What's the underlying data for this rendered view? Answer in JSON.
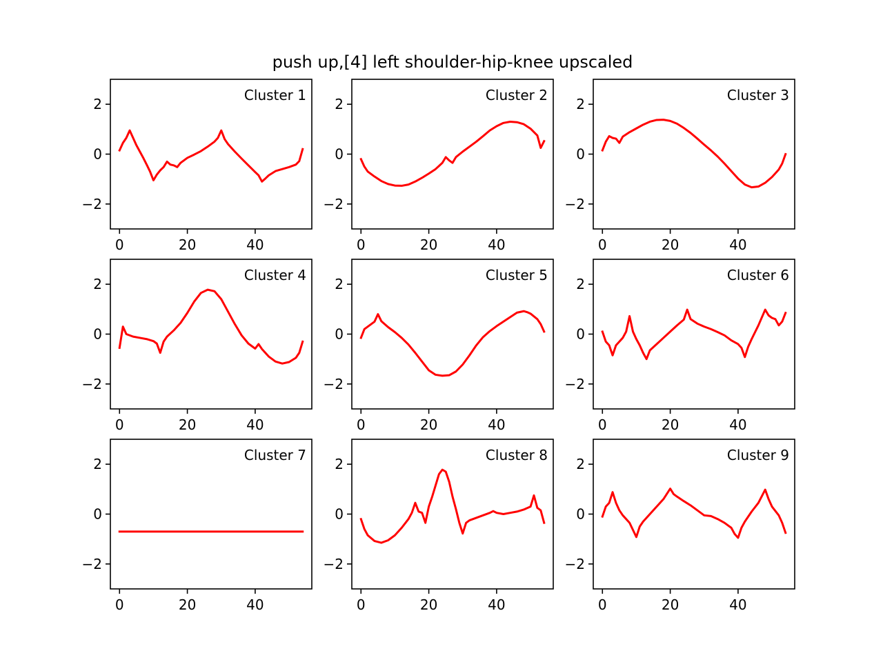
{
  "title": "push up,[4] left shoulder-hip-knee upscaled",
  "line_color": "#ff0000",
  "chart_data": [
    {
      "type": "line",
      "label": "Cluster 1",
      "xlim": [
        -2.7,
        56.7
      ],
      "ylim": [
        -3,
        3
      ],
      "xticks": [
        0,
        20,
        40
      ],
      "yticks": [
        -2,
        0,
        2
      ],
      "x": [
        0,
        1,
        2,
        3,
        4,
        5,
        6,
        7,
        8,
        9,
        10,
        11,
        12,
        13,
        14,
        15,
        16,
        17,
        18,
        19,
        20,
        22,
        24,
        26,
        28,
        29,
        30,
        31,
        32,
        34,
        36,
        38,
        40,
        41,
        42,
        43,
        44,
        46,
        48,
        50,
        52,
        53,
        54
      ],
      "y": [
        0.15,
        0.45,
        0.65,
        0.95,
        0.65,
        0.35,
        0.1,
        -0.15,
        -0.42,
        -0.7,
        -1.05,
        -0.82,
        -0.65,
        -0.52,
        -0.3,
        -0.42,
        -0.45,
        -0.52,
        -0.35,
        -0.25,
        -0.15,
        -0.02,
        0.12,
        0.3,
        0.5,
        0.65,
        0.95,
        0.6,
        0.4,
        0.1,
        -0.18,
        -0.45,
        -0.72,
        -0.85,
        -1.1,
        -0.98,
        -0.85,
        -0.68,
        -0.6,
        -0.52,
        -0.42,
        -0.28,
        0.2
      ]
    },
    {
      "type": "line",
      "label": "Cluster 2",
      "xlim": [
        -2.7,
        56.7
      ],
      "ylim": [
        -3,
        3
      ],
      "xticks": [
        0,
        20,
        40
      ],
      "yticks": [
        -2,
        0,
        2
      ],
      "x": [
        0,
        1,
        2,
        4,
        6,
        8,
        10,
        12,
        14,
        16,
        18,
        20,
        22,
        24,
        25,
        26,
        27,
        28,
        30,
        32,
        34,
        36,
        38,
        40,
        42,
        44,
        46,
        48,
        50,
        52,
        53,
        54
      ],
      "y": [
        -0.2,
        -0.5,
        -0.7,
        -0.9,
        -1.08,
        -1.2,
        -1.26,
        -1.27,
        -1.22,
        -1.1,
        -0.95,
        -0.78,
        -0.6,
        -0.35,
        -0.12,
        -0.25,
        -0.35,
        -0.12,
        0.1,
        0.3,
        0.5,
        0.72,
        0.95,
        1.12,
        1.25,
        1.3,
        1.28,
        1.2,
        1.02,
        0.75,
        0.25,
        0.52
      ]
    },
    {
      "type": "line",
      "label": "Cluster 3",
      "xlim": [
        -2.7,
        56.7
      ],
      "ylim": [
        -3,
        3
      ],
      "xticks": [
        0,
        20,
        40
      ],
      "yticks": [
        -2,
        0,
        2
      ],
      "x": [
        0,
        1,
        2,
        3,
        4,
        5,
        6,
        8,
        10,
        12,
        14,
        16,
        18,
        20,
        22,
        24,
        26,
        28,
        30,
        32,
        34,
        36,
        38,
        40,
        42,
        44,
        46,
        48,
        50,
        52,
        53,
        54
      ],
      "y": [
        0.15,
        0.5,
        0.72,
        0.65,
        0.62,
        0.45,
        0.7,
        0.88,
        1.03,
        1.18,
        1.3,
        1.37,
        1.38,
        1.33,
        1.22,
        1.05,
        0.85,
        0.62,
        0.38,
        0.15,
        -0.1,
        -0.38,
        -0.68,
        -0.98,
        -1.22,
        -1.33,
        -1.3,
        -1.15,
        -0.92,
        -0.62,
        -0.38,
        0.0
      ]
    },
    {
      "type": "line",
      "label": "Cluster 4",
      "xlim": [
        -2.7,
        56.7
      ],
      "ylim": [
        -3,
        3
      ],
      "xticks": [
        0,
        20,
        40
      ],
      "yticks": [
        -2,
        0,
        2
      ],
      "x": [
        0,
        1,
        2,
        4,
        6,
        8,
        10,
        11,
        12,
        13,
        14,
        16,
        18,
        20,
        22,
        24,
        26,
        28,
        30,
        32,
        34,
        36,
        38,
        40,
        41,
        42,
        44,
        46,
        48,
        50,
        52,
        53,
        54
      ],
      "y": [
        -0.55,
        0.3,
        0.0,
        -0.1,
        -0.15,
        -0.2,
        -0.28,
        -0.38,
        -0.75,
        -0.3,
        -0.1,
        0.15,
        0.45,
        0.85,
        1.3,
        1.65,
        1.78,
        1.72,
        1.4,
        0.9,
        0.4,
        -0.05,
        -0.38,
        -0.58,
        -0.4,
        -0.6,
        -0.9,
        -1.1,
        -1.18,
        -1.12,
        -0.95,
        -0.75,
        -0.3
      ]
    },
    {
      "type": "line",
      "label": "Cluster 5",
      "xlim": [
        -2.7,
        56.7
      ],
      "ylim": [
        -3,
        3
      ],
      "xticks": [
        0,
        20,
        40
      ],
      "yticks": [
        -2,
        0,
        2
      ],
      "x": [
        0,
        1,
        2,
        3,
        4,
        5,
        6,
        8,
        10,
        12,
        14,
        16,
        18,
        20,
        22,
        24,
        26,
        28,
        30,
        32,
        34,
        36,
        38,
        40,
        42,
        44,
        46,
        48,
        49,
        50,
        52,
        53,
        54
      ],
      "y": [
        -0.15,
        0.2,
        0.3,
        0.4,
        0.5,
        0.8,
        0.52,
        0.28,
        0.08,
        -0.15,
        -0.42,
        -0.75,
        -1.1,
        -1.45,
        -1.63,
        -1.67,
        -1.65,
        -1.5,
        -1.22,
        -0.85,
        -0.45,
        -0.12,
        0.12,
        0.32,
        0.5,
        0.68,
        0.86,
        0.92,
        0.88,
        0.82,
        0.6,
        0.4,
        0.1
      ]
    },
    {
      "type": "line",
      "label": "Cluster 6",
      "xlim": [
        -2.7,
        56.7
      ],
      "ylim": [
        -3,
        3
      ],
      "xticks": [
        0,
        20,
        40
      ],
      "yticks": [
        -2,
        0,
        2
      ],
      "x": [
        0,
        1,
        2,
        3,
        4,
        5,
        6,
        7,
        8,
        9,
        10,
        11,
        12,
        13,
        14,
        16,
        18,
        20,
        22,
        24,
        25,
        26,
        28,
        30,
        32,
        34,
        36,
        38,
        40,
        41,
        42,
        43,
        44,
        46,
        48,
        49,
        50,
        51,
        52,
        53,
        54
      ],
      "y": [
        0.1,
        -0.3,
        -0.45,
        -0.85,
        -0.45,
        -0.3,
        -0.15,
        0.1,
        0.72,
        0.1,
        -0.2,
        -0.45,
        -0.75,
        -1.0,
        -0.65,
        -0.4,
        -0.15,
        0.1,
        0.35,
        0.58,
        0.98,
        0.6,
        0.42,
        0.3,
        0.2,
        0.08,
        -0.05,
        -0.25,
        -0.4,
        -0.55,
        -0.92,
        -0.5,
        -0.2,
        0.35,
        0.98,
        0.75,
        0.65,
        0.6,
        0.35,
        0.5,
        0.85
      ]
    },
    {
      "type": "line",
      "label": "Cluster 7",
      "xlim": [
        -2.7,
        56.7
      ],
      "ylim": [
        -3,
        3
      ],
      "xticks": [
        0,
        20,
        40
      ],
      "yticks": [
        -2,
        0,
        2
      ],
      "x": [
        0,
        54
      ],
      "y": [
        -0.7,
        -0.7
      ]
    },
    {
      "type": "line",
      "label": "Cluster 8",
      "xlim": [
        -2.7,
        56.7
      ],
      "ylim": [
        -3,
        3
      ],
      "xticks": [
        0,
        20,
        40
      ],
      "yticks": [
        -2,
        0,
        2
      ],
      "x": [
        0,
        1,
        2,
        4,
        6,
        8,
        10,
        12,
        14,
        15,
        16,
        17,
        18,
        19,
        20,
        21,
        22,
        23,
        24,
        25,
        26,
        27,
        28,
        29,
        30,
        31,
        32,
        34,
        36,
        38,
        39,
        40,
        42,
        44,
        46,
        48,
        50,
        51,
        52,
        53,
        54
      ],
      "y": [
        -0.2,
        -0.6,
        -0.85,
        -1.08,
        -1.15,
        -1.05,
        -0.85,
        -0.55,
        -0.2,
        0.05,
        0.45,
        0.1,
        0.05,
        -0.35,
        0.3,
        0.7,
        1.15,
        1.6,
        1.78,
        1.7,
        1.3,
        0.7,
        0.2,
        -0.35,
        -0.78,
        -0.35,
        -0.25,
        -0.15,
        -0.05,
        0.05,
        0.12,
        0.05,
        0.0,
        0.05,
        0.1,
        0.18,
        0.3,
        0.75,
        0.25,
        0.15,
        -0.35
      ]
    },
    {
      "type": "line",
      "label": "Cluster 9",
      "xlim": [
        -2.7,
        56.7
      ],
      "ylim": [
        -3,
        3
      ],
      "xticks": [
        0,
        20,
        40
      ],
      "yticks": [
        -2,
        0,
        2
      ],
      "x": [
        0,
        1,
        2,
        3,
        4,
        5,
        6,
        8,
        10,
        11,
        12,
        14,
        16,
        18,
        20,
        21,
        22,
        24,
        26,
        28,
        30,
        32,
        34,
        36,
        38,
        39,
        40,
        41,
        42,
        44,
        46,
        48,
        49,
        50,
        52,
        53,
        54
      ],
      "y": [
        -0.1,
        0.3,
        0.45,
        0.88,
        0.45,
        0.15,
        -0.05,
        -0.35,
        -0.92,
        -0.5,
        -0.3,
        0.0,
        0.3,
        0.6,
        1.02,
        0.8,
        0.7,
        0.52,
        0.35,
        0.15,
        -0.05,
        -0.08,
        -0.2,
        -0.35,
        -0.55,
        -0.8,
        -0.95,
        -0.55,
        -0.3,
        0.1,
        0.45,
        0.98,
        0.6,
        0.3,
        -0.05,
        -0.35,
        -0.75
      ]
    }
  ]
}
